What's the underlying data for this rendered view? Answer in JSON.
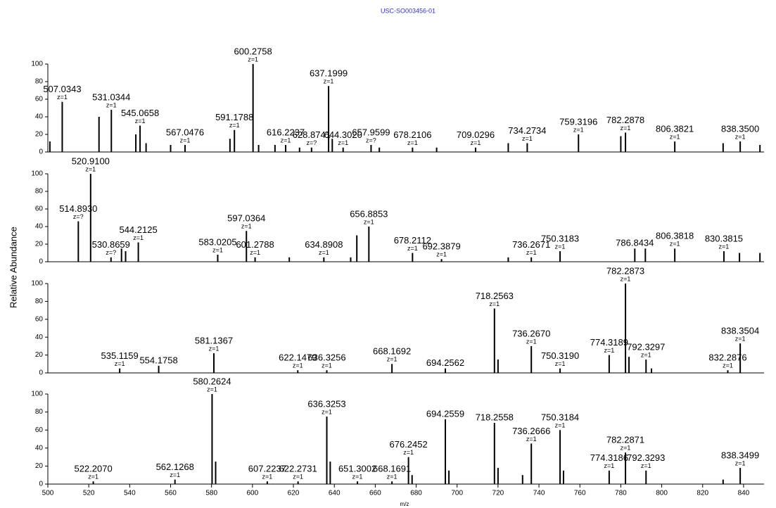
{
  "title": "USC-SO003456-01",
  "y_label": "Relative Abundance",
  "x_label": "m/z",
  "chart_data": [
    {
      "type": "bar",
      "color": "#000000",
      "xlim": [
        500,
        850
      ],
      "ylim": [
        0,
        100
      ],
      "yticks": [
        0,
        20,
        40,
        60,
        80,
        100
      ],
      "x": [
        507.0343,
        531.0344,
        545.0658,
        567.0476,
        591.1788,
        600.2758,
        616.2237,
        628.8741,
        637.1999,
        644.302,
        657.9599,
        678.2106,
        709.0296,
        734.2734,
        759.3196,
        782.2878,
        806.3821,
        838.35,
        501,
        525,
        543,
        548,
        560,
        589,
        603,
        611,
        623,
        639,
        662,
        690,
        725,
        780,
        830,
        848
      ],
      "values": [
        57,
        48,
        30,
        8,
        25,
        100,
        8,
        5,
        75,
        5,
        8,
        5,
        5,
        10,
        20,
        22,
        12,
        12,
        12,
        40,
        20,
        10,
        8,
        15,
        8,
        8,
        5,
        15,
        5,
        5,
        10,
        18,
        10,
        8
      ],
      "peak_labels": [
        "507.0343",
        "531.0344",
        "545.0658",
        "567.0476",
        "591.1788",
        "600.2758",
        "616.2237",
        "628.8741",
        "637.1999",
        "644.3020",
        "657.9599",
        "678.2106",
        "709.0296",
        "734.2734",
        "759.3196",
        "782.2878",
        "806.3821",
        "838.3500",
        null,
        null,
        null,
        null,
        null,
        null,
        null,
        null,
        null,
        null,
        null,
        null,
        null,
        null,
        null,
        null
      ],
      "charges": [
        "z=1",
        "z=1",
        "z=1",
        "z=1",
        "z=1",
        "z=1",
        "z=1",
        "z=?",
        "z=1",
        "z=1",
        "z=?",
        "z=1",
        "z=1",
        "z=1",
        "z=1",
        "z=1",
        "z=1",
        "z=1",
        null,
        null,
        null,
        null,
        null,
        null,
        null,
        null,
        null,
        null,
        null,
        null,
        null,
        null,
        null,
        null
      ]
    },
    {
      "type": "bar",
      "color": "#000000",
      "xlim": [
        500,
        850
      ],
      "ylim": [
        0,
        100
      ],
      "yticks": [
        0,
        20,
        40,
        60,
        80,
        100
      ],
      "x": [
        514.893,
        520.91,
        530.8659,
        544.2125,
        583.0205,
        597.0364,
        601.2788,
        634.8908,
        656.8853,
        678.2112,
        692.3879,
        736.2671,
        750.3183,
        786.8434,
        806.3818,
        830.3815,
        536,
        538,
        618,
        648,
        651,
        725,
        792,
        838,
        848
      ],
      "values": [
        46,
        100,
        5,
        22,
        8,
        35,
        5,
        5,
        40,
        10,
        3,
        5,
        12,
        15,
        15,
        12,
        15,
        12,
        5,
        5,
        30,
        5,
        15,
        10,
        10
      ],
      "peak_labels": [
        "514.8930",
        "520.9100",
        "530.8659",
        "544.2125",
        "583.0205",
        "597.0364",
        "601.2788",
        "634.8908",
        "656.8853",
        "678.2112",
        "692.3879",
        "736.2671",
        "750.3183",
        "786.8434",
        "806.3818",
        "830.3815",
        null,
        null,
        null,
        null,
        null,
        null,
        null,
        null,
        null
      ],
      "charges": [
        "z=?",
        "z=1",
        "z=?",
        "z=1",
        "z=1",
        "z=1",
        "z=1",
        "z=1",
        "z=1",
        "z=1",
        "z=1",
        "z=1",
        "z=1",
        null,
        "z=1",
        "z=1",
        null,
        null,
        null,
        null,
        null,
        null,
        null,
        null,
        null
      ]
    },
    {
      "type": "bar",
      "color": "#000000",
      "xlim": [
        500,
        850
      ],
      "ylim": [
        0,
        100
      ],
      "yticks": [
        0,
        20,
        40,
        60,
        80,
        100
      ],
      "x": [
        535.1159,
        554.1758,
        581.1367,
        622.1479,
        636.3256,
        668.1692,
        694.2562,
        718.2563,
        736.267,
        750.319,
        774.3189,
        782.2873,
        792.3297,
        832.2876,
        838.3504,
        720,
        784,
        795
      ],
      "values": [
        5,
        8,
        22,
        3,
        3,
        10,
        5,
        72,
        30,
        5,
        20,
        100,
        15,
        3,
        33,
        15,
        18,
        5
      ],
      "peak_labels": [
        "535.1159",
        "554.1758",
        "581.1367",
        "622.1479",
        "636.3256",
        "668.1692",
        "694.2562",
        "718.2563",
        "736.2670",
        "750.3190",
        "774.3189",
        "782.2873",
        "792.3297",
        "832.2876",
        "838.3504",
        null,
        null,
        null
      ],
      "charges": [
        "z=1",
        null,
        "z=1",
        "z=1",
        "z=1",
        "z=1",
        null,
        "z=1",
        "z=1",
        "z=1",
        "z=1",
        "z=1",
        "z=1",
        "z=1",
        "z=1",
        null,
        null,
        null
      ]
    },
    {
      "type": "bar",
      "color": "#000000",
      "xlim": [
        500,
        850
      ],
      "ylim": [
        0,
        100
      ],
      "yticks": [
        0,
        20,
        40,
        60,
        80,
        100
      ],
      "xticks": [
        500,
        520,
        540,
        560,
        580,
        600,
        620,
        640,
        660,
        680,
        700,
        720,
        740,
        760,
        780,
        800,
        820,
        840
      ],
      "x": [
        522.207,
        562.1268,
        580.2624,
        607.2237,
        622.2731,
        636.3253,
        651.3002,
        668.1691,
        676.2452,
        694.2559,
        718.2558,
        736.2666,
        750.3184,
        774.3186,
        782.2871,
        792.3293,
        838.3499,
        582,
        638,
        678,
        696,
        720,
        732,
        752,
        830
      ],
      "values": [
        3,
        5,
        100,
        3,
        3,
        75,
        3,
        3,
        30,
        72,
        68,
        45,
        60,
        15,
        35,
        15,
        18,
        25,
        25,
        10,
        15,
        18,
        10,
        15,
        5
      ],
      "peak_labels": [
        "522.2070",
        "562.1268",
        "580.2624",
        "607.2237",
        "622.2731",
        "636.3253",
        "651.3002",
        "668.1691",
        "676.2452",
        "694.2559",
        "718.2558",
        "736.2666",
        "750.3184",
        "774.3186",
        "782.2871",
        "792.3293",
        "838.3499",
        null,
        null,
        null,
        null,
        null,
        null,
        null,
        null
      ],
      "charges": [
        "z=1",
        "z=1",
        "z=1",
        "z=1",
        "z=1",
        "z=1",
        "z=1",
        "z=1",
        "z=1",
        null,
        null,
        "z=1",
        "z=1",
        "z=1",
        "z=1",
        "z=1",
        "z=1",
        null,
        null,
        null,
        null,
        null,
        null,
        null,
        null
      ]
    }
  ]
}
